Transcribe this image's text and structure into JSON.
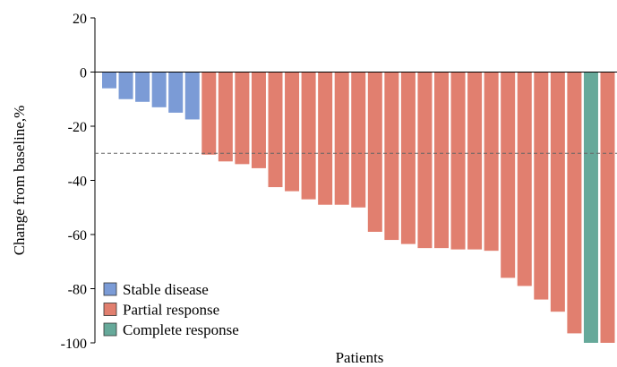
{
  "chart_data": {
    "type": "bar",
    "title": "",
    "xlabel": "Patients",
    "ylabel": "Change from baseline,%",
    "ylim": [
      -100,
      20
    ],
    "yticks": [
      20,
      0,
      -20,
      -40,
      -60,
      -80,
      -100
    ],
    "reference_line": {
      "y": -30,
      "style": "dashed"
    },
    "grid": false,
    "legend_position": "bottom-left",
    "categories": [
      "Stable disease",
      "Partial response",
      "Complete response"
    ],
    "colors": {
      "Stable disease": "#7B9BD6",
      "Partial response": "#E17F6F",
      "Complete response": "#66A99A"
    },
    "bars": [
      {
        "value": -6,
        "category": "Stable disease"
      },
      {
        "value": -10,
        "category": "Stable disease"
      },
      {
        "value": -11,
        "category": "Stable disease"
      },
      {
        "value": -13,
        "category": "Stable disease"
      },
      {
        "value": -15,
        "category": "Stable disease"
      },
      {
        "value": -17.5,
        "category": "Stable disease"
      },
      {
        "value": -30.5,
        "category": "Partial response"
      },
      {
        "value": -33,
        "category": "Partial response"
      },
      {
        "value": -34,
        "category": "Partial response"
      },
      {
        "value": -35.5,
        "category": "Partial response"
      },
      {
        "value": -42.5,
        "category": "Partial response"
      },
      {
        "value": -44,
        "category": "Partial response"
      },
      {
        "value": -47,
        "category": "Partial response"
      },
      {
        "value": -49,
        "category": "Partial response"
      },
      {
        "value": -49,
        "category": "Partial response"
      },
      {
        "value": -50,
        "category": "Partial response"
      },
      {
        "value": -59,
        "category": "Partial response"
      },
      {
        "value": -62,
        "category": "Partial response"
      },
      {
        "value": -63.5,
        "category": "Partial response"
      },
      {
        "value": -65,
        "category": "Partial response"
      },
      {
        "value": -65,
        "category": "Partial response"
      },
      {
        "value": -65.5,
        "category": "Partial response"
      },
      {
        "value": -65.5,
        "category": "Partial response"
      },
      {
        "value": -66,
        "category": "Partial response"
      },
      {
        "value": -76,
        "category": "Partial response"
      },
      {
        "value": -79,
        "category": "Partial response"
      },
      {
        "value": -84,
        "category": "Partial response"
      },
      {
        "value": -88.5,
        "category": "Partial response"
      },
      {
        "value": -96.5,
        "category": "Partial response"
      },
      {
        "value": -100,
        "category": "Complete response"
      },
      {
        "value": -100,
        "category": "Partial response"
      }
    ]
  }
}
